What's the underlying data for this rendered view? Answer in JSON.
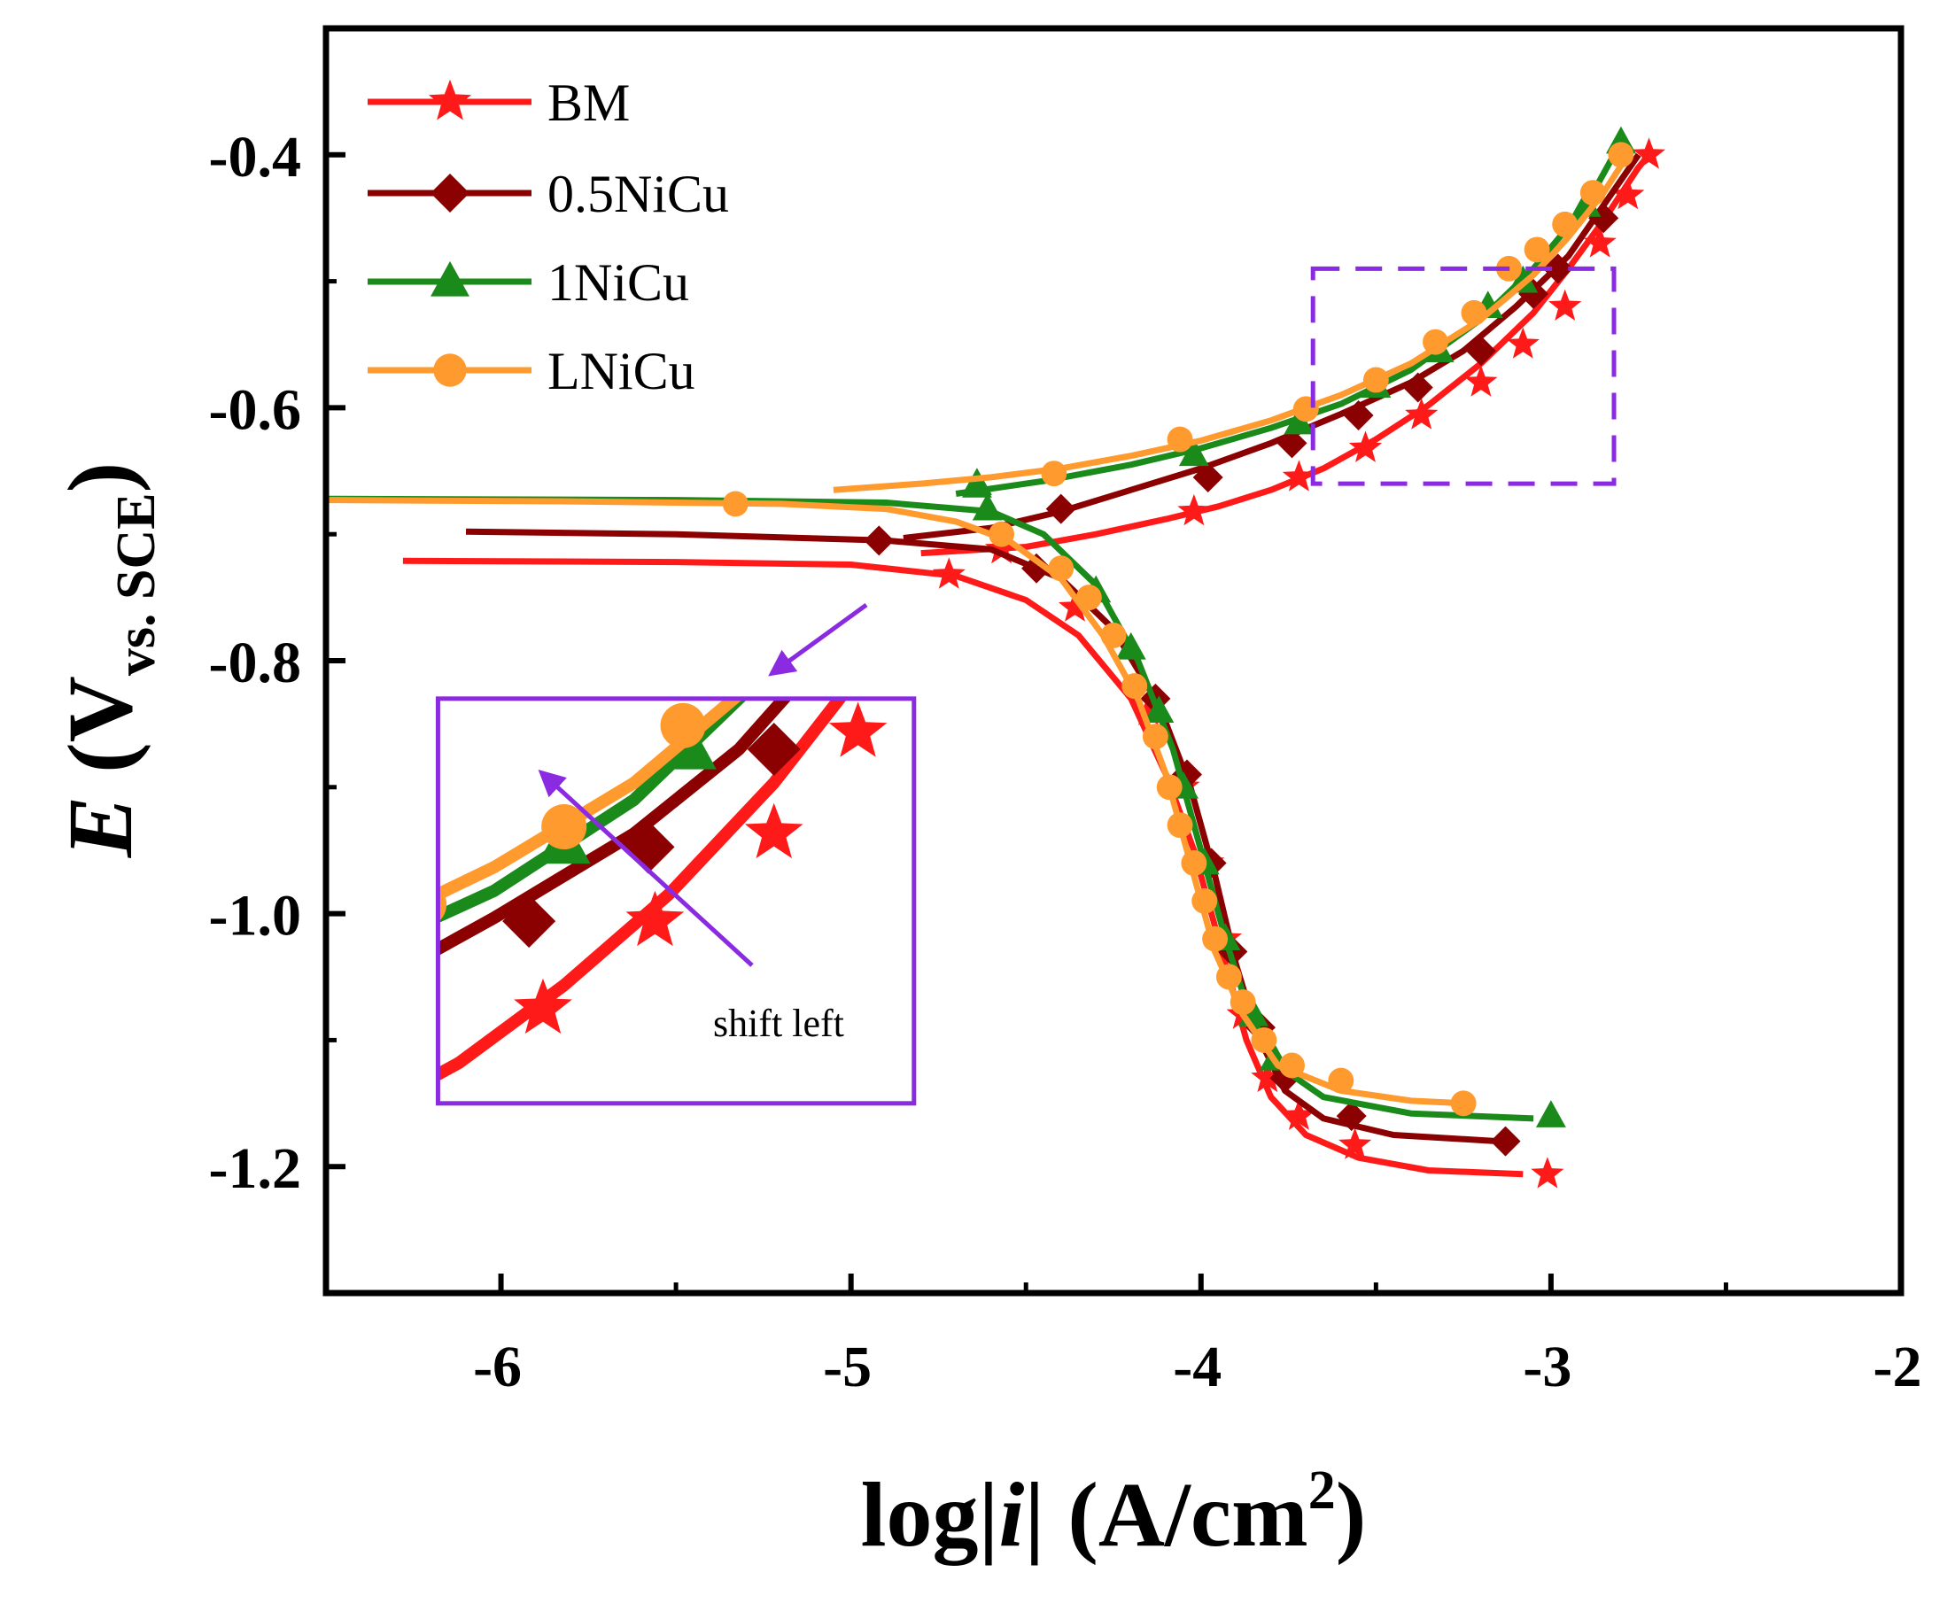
{
  "colors": {
    "BM": "#ff1a1a",
    "0.5NiCu": "#8b0000",
    "1NiCu": "#1a8a1a",
    "LNiCu": "#ff9a2e",
    "highlight": "#8a2be2",
    "axis": "#000000"
  },
  "chart_data": {
    "type": "line",
    "title": "",
    "xlabel_pre": "log|",
    "xlabel_italic": "i",
    "xlabel_post": "| (A/cm",
    "xlabel_sup": "2",
    "xlabel_close": ")",
    "ylabel_italic": "E",
    "ylabel_main": " (V",
    "ylabel_sub": "vs. SCE",
    "ylabel_close": ")",
    "xlim": [
      -6.5,
      -2
    ],
    "ylim": [
      -1.3,
      -0.3
    ],
    "xticks": [
      -6,
      -5,
      -4,
      -3,
      -2
    ],
    "xtick_labels": [
      "-6",
      "-5",
      "-4",
      "-3",
      "-2"
    ],
    "yticks": [
      -1.2,
      -1.0,
      -0.8,
      -0.6,
      -0.4
    ],
    "ytick_labels": [
      "-1.2",
      "-1.0",
      "-0.8",
      "-0.6",
      "-0.4"
    ],
    "legend_position": "top-left",
    "series": [
      {
        "name": "BM",
        "marker": "star",
        "cathodic": [
          [
            -6.28,
            -0.721
          ],
          [
            -5.5,
            -0.722
          ],
          [
            -5.0,
            -0.724
          ],
          [
            -4.7,
            -0.733
          ],
          [
            -4.5,
            -0.752
          ],
          [
            -4.35,
            -0.78
          ],
          [
            -4.2,
            -0.83
          ],
          [
            -4.1,
            -0.89
          ],
          [
            -4.02,
            -0.95
          ],
          [
            -3.97,
            -1.0
          ],
          [
            -3.92,
            -1.05
          ],
          [
            -3.87,
            -1.1
          ],
          [
            -3.8,
            -1.145
          ],
          [
            -3.7,
            -1.175
          ],
          [
            -3.55,
            -1.193
          ],
          [
            -3.35,
            -1.203
          ],
          [
            -3.08,
            -1.206
          ]
        ],
        "anodic": [
          [
            -4.8,
            -0.715
          ],
          [
            -4.5,
            -0.71
          ],
          [
            -4.3,
            -0.7
          ],
          [
            -4.1,
            -0.688
          ],
          [
            -3.95,
            -0.678
          ],
          [
            -3.8,
            -0.665
          ],
          [
            -3.65,
            -0.648
          ],
          [
            -3.5,
            -0.625
          ],
          [
            -3.35,
            -0.598
          ],
          [
            -3.2,
            -0.565
          ],
          [
            -3.05,
            -0.525
          ],
          [
            -2.95,
            -0.49
          ],
          [
            -2.85,
            -0.452
          ],
          [
            -2.75,
            -0.41
          ],
          [
            -2.72,
            -0.4
          ]
        ],
        "cathodic_markers": [
          [
            -4.72,
            -0.732
          ],
          [
            -4.36,
            -0.758
          ],
          [
            -4.15,
            -0.84
          ],
          [
            -4.05,
            -0.9
          ],
          [
            -3.98,
            -0.96
          ],
          [
            -3.93,
            -1.02
          ],
          [
            -3.88,
            -1.08
          ],
          [
            -3.81,
            -1.13
          ],
          [
            -3.72,
            -1.16
          ],
          [
            -3.56,
            -1.183
          ],
          [
            -3.01,
            -1.206
          ]
        ],
        "anodic_markers": [
          [
            -4.57,
            -0.712
          ],
          [
            -4.02,
            -0.682
          ],
          [
            -3.72,
            -0.655
          ],
          [
            -3.53,
            -0.632
          ],
          [
            -3.37,
            -0.606
          ],
          [
            -3.2,
            -0.58
          ],
          [
            -3.08,
            -0.55
          ],
          [
            -2.96,
            -0.52
          ],
          [
            -2.86,
            -0.47
          ],
          [
            -2.78,
            -0.432
          ],
          [
            -2.72,
            -0.4
          ]
        ]
      },
      {
        "name": "0.5NiCu",
        "marker": "diamond",
        "cathodic": [
          [
            -6.1,
            -0.698
          ],
          [
            -5.5,
            -0.7
          ],
          [
            -4.9,
            -0.705
          ],
          [
            -4.6,
            -0.712
          ],
          [
            -4.4,
            -0.735
          ],
          [
            -4.25,
            -0.775
          ],
          [
            -4.12,
            -0.835
          ],
          [
            -4.03,
            -0.9
          ],
          [
            -3.96,
            -0.97
          ],
          [
            -3.9,
            -1.04
          ],
          [
            -3.84,
            -1.095
          ],
          [
            -3.76,
            -1.14
          ],
          [
            -3.65,
            -1.162
          ],
          [
            -3.45,
            -1.175
          ],
          [
            -3.15,
            -1.18
          ]
        ],
        "anodic": [
          [
            -4.85,
            -0.703
          ],
          [
            -4.6,
            -0.695
          ],
          [
            -4.4,
            -0.682
          ],
          [
            -4.2,
            -0.665
          ],
          [
            -4.0,
            -0.648
          ],
          [
            -3.8,
            -0.628
          ],
          [
            -3.6,
            -0.605
          ],
          [
            -3.4,
            -0.58
          ],
          [
            -3.25,
            -0.555
          ],
          [
            -3.1,
            -0.52
          ],
          [
            -2.95,
            -0.48
          ],
          [
            -2.85,
            -0.44
          ],
          [
            -2.75,
            -0.4
          ]
        ],
        "cathodic_markers": [
          [
            -4.92,
            -0.705
          ],
          [
            -4.47,
            -0.727
          ],
          [
            -4.13,
            -0.83
          ],
          [
            -4.04,
            -0.89
          ],
          [
            -3.97,
            -0.96
          ],
          [
            -3.91,
            -1.03
          ],
          [
            -3.83,
            -1.09
          ],
          [
            -3.76,
            -1.13
          ],
          [
            -3.57,
            -1.16
          ],
          [
            -3.13,
            -1.18
          ]
        ],
        "anodic_markers": [
          [
            -4.4,
            -0.68
          ],
          [
            -3.98,
            -0.655
          ],
          [
            -3.74,
            -0.628
          ],
          [
            -3.55,
            -0.606
          ],
          [
            -3.38,
            -0.584
          ],
          [
            -3.2,
            -0.555
          ],
          [
            -3.05,
            -0.51
          ],
          [
            -2.98,
            -0.49
          ],
          [
            -2.85,
            -0.45
          ]
        ]
      },
      {
        "name": "1NiCu",
        "marker": "triangle",
        "cathodic": [
          [
            -6.5,
            -0.672
          ],
          [
            -5.5,
            -0.673
          ],
          [
            -4.9,
            -0.675
          ],
          [
            -4.6,
            -0.682
          ],
          [
            -4.45,
            -0.7
          ],
          [
            -4.3,
            -0.74
          ],
          [
            -4.18,
            -0.8
          ],
          [
            -4.08,
            -0.87
          ],
          [
            -4.0,
            -0.95
          ],
          [
            -3.93,
            -1.02
          ],
          [
            -3.86,
            -1.08
          ],
          [
            -3.78,
            -1.12
          ],
          [
            -3.65,
            -1.145
          ],
          [
            -3.4,
            -1.158
          ],
          [
            -3.05,
            -1.162
          ]
        ],
        "anodic": [
          [
            -4.7,
            -0.668
          ],
          [
            -4.45,
            -0.658
          ],
          [
            -4.2,
            -0.645
          ],
          [
            -4.0,
            -0.632
          ],
          [
            -3.8,
            -0.616
          ],
          [
            -3.6,
            -0.597
          ],
          [
            -3.4,
            -0.57
          ],
          [
            -3.2,
            -0.53
          ],
          [
            -3.05,
            -0.49
          ],
          [
            -2.9,
            -0.44
          ],
          [
            -2.8,
            -0.39
          ]
        ],
        "cathodic_markers": [
          [
            -4.64,
            -0.662
          ],
          [
            -4.61,
            -0.68
          ],
          [
            -4.3,
            -0.745
          ],
          [
            -4.2,
            -0.79
          ],
          [
            -4.12,
            -0.84
          ],
          [
            -4.05,
            -0.9
          ],
          [
            -3.99,
            -0.96
          ],
          [
            -3.93,
            -1.02
          ],
          [
            -3.85,
            -1.08
          ],
          [
            -3.79,
            -1.115
          ],
          [
            -3.0,
            -1.16
          ]
        ],
        "anodic_markers": [
          [
            -4.64,
            -0.66
          ],
          [
            -4.02,
            -0.637
          ],
          [
            -3.72,
            -0.612
          ],
          [
            -3.5,
            -0.583
          ],
          [
            -3.32,
            -0.555
          ],
          [
            -3.18,
            -0.52
          ],
          [
            -3.08,
            -0.5
          ],
          [
            -2.9,
            -0.44
          ],
          [
            -2.8,
            -0.39
          ]
        ]
      },
      {
        "name": "LNiCu",
        "marker": "circle",
        "cathodic": [
          [
            -6.5,
            -0.673
          ],
          [
            -5.8,
            -0.674
          ],
          [
            -5.2,
            -0.676
          ],
          [
            -4.9,
            -0.68
          ],
          [
            -4.7,
            -0.69
          ],
          [
            -4.55,
            -0.705
          ],
          [
            -4.4,
            -0.735
          ],
          [
            -4.28,
            -0.78
          ],
          [
            -4.18,
            -0.83
          ],
          [
            -4.1,
            -0.89
          ],
          [
            -4.03,
            -0.96
          ],
          [
            -3.96,
            -1.03
          ],
          [
            -3.88,
            -1.08
          ],
          [
            -3.78,
            -1.12
          ],
          [
            -3.6,
            -1.14
          ],
          [
            -3.4,
            -1.148
          ],
          [
            -3.25,
            -1.15
          ]
        ],
        "anodic": [
          [
            -5.05,
            -0.665
          ],
          [
            -4.8,
            -0.66
          ],
          [
            -4.6,
            -0.655
          ],
          [
            -4.4,
            -0.648
          ],
          [
            -4.2,
            -0.638
          ],
          [
            -4.0,
            -0.626
          ],
          [
            -3.8,
            -0.61
          ],
          [
            -3.6,
            -0.59
          ],
          [
            -3.4,
            -0.565
          ],
          [
            -3.2,
            -0.53
          ],
          [
            -3.05,
            -0.495
          ],
          [
            -2.95,
            -0.465
          ],
          [
            -2.85,
            -0.43
          ],
          [
            -2.78,
            -0.4
          ]
        ],
        "cathodic_markers": [
          [
            -5.33,
            -0.676
          ],
          [
            -4.57,
            -0.7
          ],
          [
            -4.4,
            -0.727
          ],
          [
            -4.32,
            -0.75
          ],
          [
            -4.25,
            -0.78
          ],
          [
            -4.19,
            -0.82
          ],
          [
            -4.13,
            -0.86
          ],
          [
            -4.09,
            -0.9
          ],
          [
            -4.06,
            -0.93
          ],
          [
            -4.02,
            -0.96
          ],
          [
            -3.99,
            -0.99
          ],
          [
            -3.96,
            -1.02
          ],
          [
            -3.92,
            -1.05
          ],
          [
            -3.88,
            -1.07
          ],
          [
            -3.82,
            -1.1
          ],
          [
            -3.74,
            -1.12
          ],
          [
            -3.6,
            -1.132
          ],
          [
            -3.25,
            -1.15
          ]
        ],
        "anodic_markers": [
          [
            -4.42,
            -0.652
          ],
          [
            -4.06,
            -0.625
          ],
          [
            -3.7,
            -0.601
          ],
          [
            -3.5,
            -0.578
          ],
          [
            -3.33,
            -0.548
          ],
          [
            -3.22,
            -0.525
          ],
          [
            -3.12,
            -0.49
          ],
          [
            -3.04,
            -0.475
          ],
          [
            -2.96,
            -0.455
          ],
          [
            -2.88,
            -0.43
          ],
          [
            -2.8,
            -0.4
          ]
        ]
      }
    ],
    "zoom_box": {
      "x0": -3.68,
      "x1": -2.82,
      "y0": -0.66,
      "y1": -0.49
    },
    "inset": {
      "box": {
        "x0": -6.18,
        "x1": -4.82,
        "y0": -1.15,
        "y1": -0.83
      },
      "view": {
        "x0": -3.68,
        "x1": -3.0,
        "y0": -0.66,
        "y1": -0.54
      }
    },
    "annotations": {
      "inset_label": "shift left"
    }
  }
}
